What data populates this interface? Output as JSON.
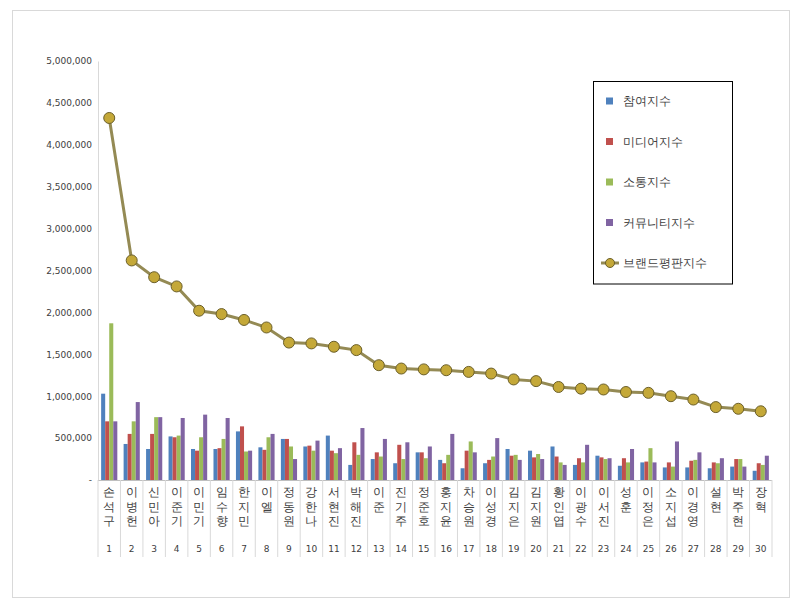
{
  "chart_data": {
    "type": "bar",
    "categories": [
      "손석구",
      "이병헌",
      "신민아",
      "이준기",
      "이민기",
      "임수향",
      "한지민",
      "이엘",
      "정동원",
      "강한나",
      "서현진",
      "박해진",
      "이준",
      "진기주",
      "정준호",
      "홍지윤",
      "차승원",
      "이성경",
      "김지은",
      "김지원",
      "황인엽",
      "이광수",
      "이서진",
      "성훈",
      "이정은",
      "소지섭",
      "이경영",
      "설현",
      "박주현",
      "장혁"
    ],
    "category_numbers": [
      1,
      2,
      3,
      4,
      5,
      6,
      7,
      8,
      9,
      10,
      11,
      12,
      13,
      14,
      15,
      16,
      17,
      18,
      19,
      20,
      21,
      22,
      23,
      24,
      25,
      26,
      27,
      28,
      29,
      30
    ],
    "series": [
      {
        "name": "참여지수",
        "color": "#4f81bd",
        "type": "bar",
        "values": [
          1030000,
          430000,
          370000,
          520000,
          370000,
          370000,
          580000,
          390000,
          490000,
          400000,
          530000,
          180000,
          250000,
          200000,
          330000,
          240000,
          140000,
          200000,
          370000,
          350000,
          400000,
          180000,
          290000,
          170000,
          210000,
          150000,
          150000,
          140000,
          160000,
          110000
        ]
      },
      {
        "name": "미디어지수",
        "color": "#c0504d",
        "type": "bar",
        "values": [
          700000,
          550000,
          550000,
          510000,
          350000,
          380000,
          640000,
          360000,
          490000,
          410000,
          350000,
          450000,
          330000,
          420000,
          330000,
          200000,
          350000,
          240000,
          290000,
          270000,
          280000,
          260000,
          270000,
          260000,
          220000,
          210000,
          230000,
          210000,
          250000,
          200000
        ]
      },
      {
        "name": "소통지수",
        "color": "#9bbb59",
        "type": "bar",
        "values": [
          1870000,
          700000,
          750000,
          530000,
          510000,
          490000,
          340000,
          510000,
          400000,
          350000,
          320000,
          300000,
          280000,
          250000,
          260000,
          300000,
          460000,
          280000,
          300000,
          310000,
          210000,
          210000,
          250000,
          210000,
          380000,
          160000,
          240000,
          200000,
          250000,
          180000
        ]
      },
      {
        "name": "커뮤니티지수",
        "color": "#8064a2",
        "type": "bar",
        "values": [
          700000,
          930000,
          750000,
          740000,
          780000,
          740000,
          350000,
          550000,
          250000,
          470000,
          380000,
          620000,
          490000,
          450000,
          400000,
          550000,
          330000,
          500000,
          240000,
          250000,
          180000,
          420000,
          260000,
          370000,
          210000,
          460000,
          330000,
          260000,
          160000,
          290000
        ]
      },
      {
        "name": "브랜드평판지수",
        "color": "#948a54",
        "type": "line",
        "marker": "circle",
        "values": [
          4320000,
          2620000,
          2420000,
          2310000,
          2020000,
          1980000,
          1910000,
          1820000,
          1640000,
          1630000,
          1590000,
          1550000,
          1370000,
          1330000,
          1320000,
          1310000,
          1290000,
          1270000,
          1200000,
          1180000,
          1110000,
          1090000,
          1080000,
          1050000,
          1040000,
          1000000,
          960000,
          870000,
          850000,
          820000
        ]
      }
    ],
    "ylim": [
      0,
      5000000
    ],
    "yticks": [
      {
        "value": 0,
        "label": "-"
      },
      {
        "value": 500000,
        "label": "500,000"
      },
      {
        "value": 1000000,
        "label": "1,000,000"
      },
      {
        "value": 1500000,
        "label": "1,500,000"
      },
      {
        "value": 2000000,
        "label": "2,000,000"
      },
      {
        "value": 2500000,
        "label": "2,500,000"
      },
      {
        "value": 3000000,
        "label": "3,000,000"
      },
      {
        "value": 3500000,
        "label": "3,500,000"
      },
      {
        "value": 4000000,
        "label": "4,000,000"
      },
      {
        "value": 4500000,
        "label": "4,500,000"
      },
      {
        "value": 5000000,
        "label": "5,000,000"
      }
    ],
    "grid": false,
    "legend": "upper right"
  }
}
